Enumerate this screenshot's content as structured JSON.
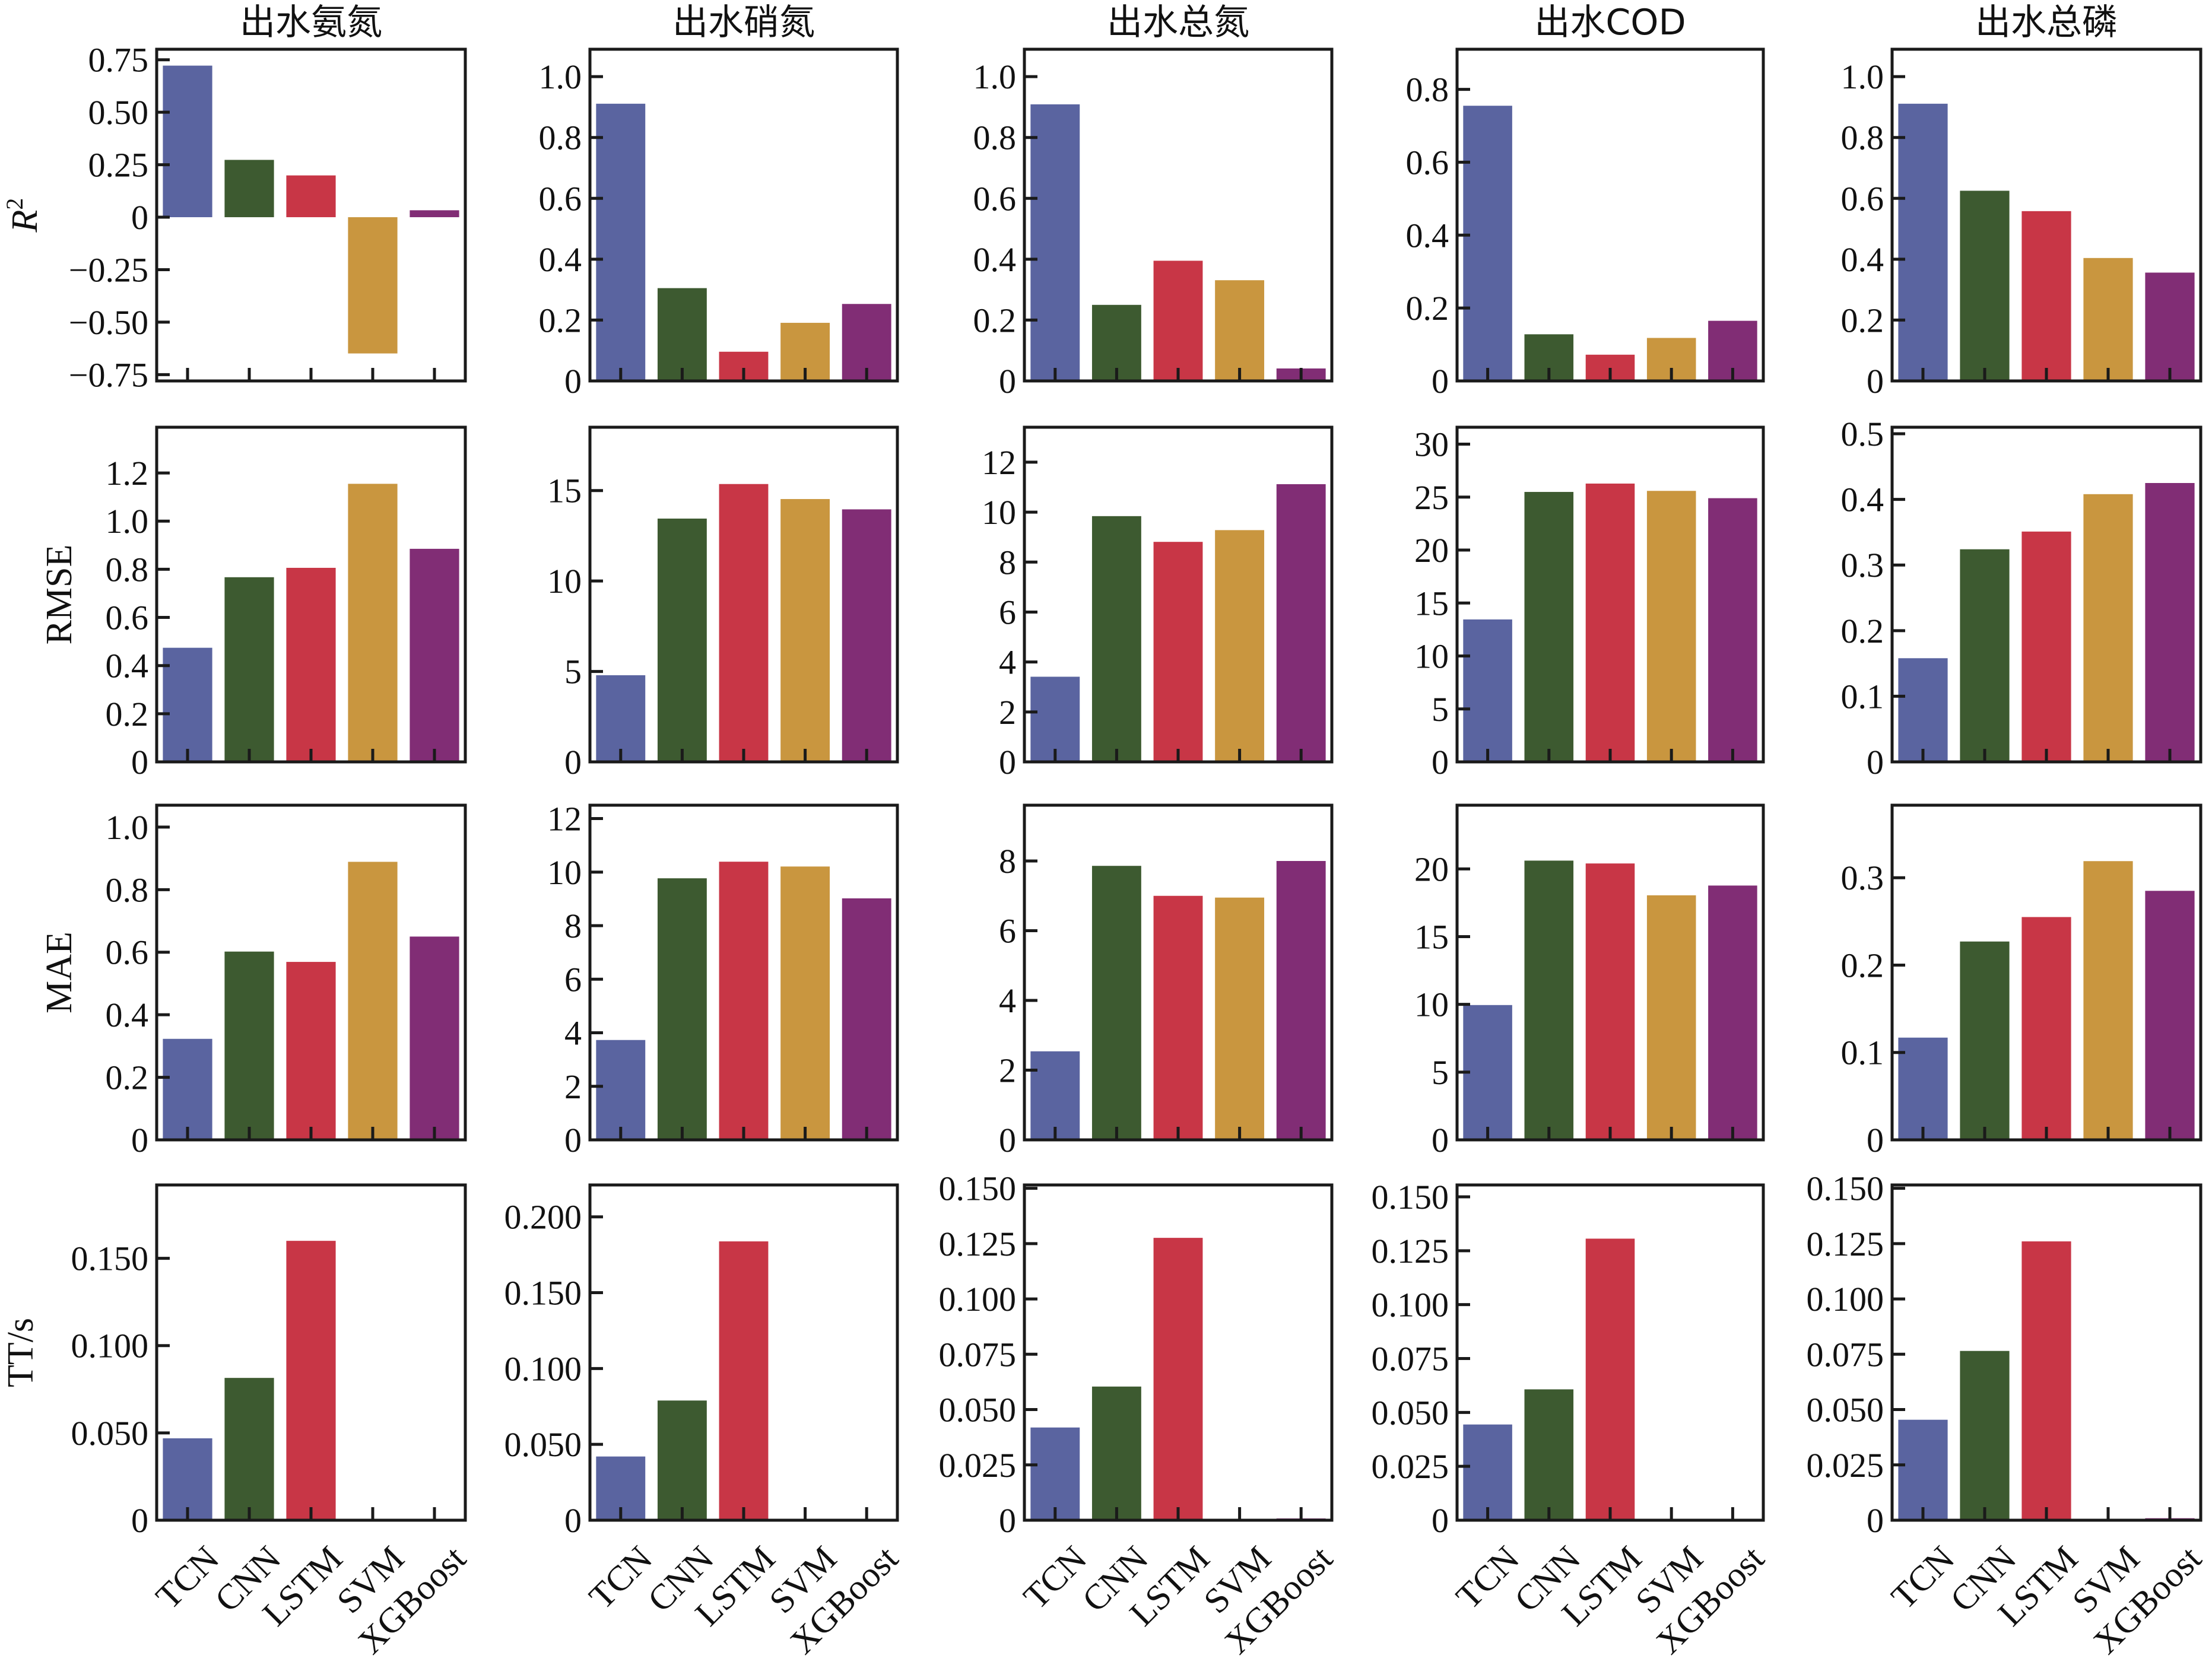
{
  "chart_data": {
    "type": "bar",
    "layout": "grid 4 rows x 5 columns",
    "categories": [
      "TCN",
      "CNN",
      "LSTM",
      "SVM",
      "XGBoost"
    ],
    "colors": [
      "#5a64a0",
      "#3d5a30",
      "#c83646",
      "#c9963f",
      "#812d75"
    ],
    "columns": [
      "出水氨氮",
      "出水硝氮",
      "出水总氮",
      "出水COD",
      "出水总磷"
    ],
    "rows": [
      {
        "metric": "R2",
        "ylabel": "R",
        "ylabel_sup": "2"
      },
      {
        "metric": "RMSE",
        "ylabel": "RMSE",
        "ylabel_sup": ""
      },
      {
        "metric": "MAE",
        "ylabel": "MAE",
        "ylabel_sup": ""
      },
      {
        "metric": "TT",
        "ylabel": "TT/s",
        "ylabel_sup": ""
      }
    ],
    "panels": [
      [
        {
          "ylim": [
            -0.78,
            0.8
          ],
          "yticks": [
            -0.75,
            -0.5,
            -0.25,
            0,
            0.25,
            0.5,
            0.75
          ],
          "ytick_labels": [
            "−0.75",
            "−0.50",
            "−0.25",
            "0",
            "0.25",
            "0.50",
            "0.75"
          ],
          "values": [
            0.722,
            0.273,
            0.199,
            -0.649,
            0.033
          ]
        },
        {
          "ylim": [
            0,
            1.09
          ],
          "yticks": [
            0,
            0.2,
            0.4,
            0.6,
            0.8,
            1.0
          ],
          "ytick_labels": [
            "0",
            "0.2",
            "0.4",
            "0.6",
            "0.8",
            "1.0"
          ],
          "values": [
            0.911,
            0.305,
            0.096,
            0.191,
            0.253
          ]
        },
        {
          "ylim": [
            0,
            1.09
          ],
          "yticks": [
            0,
            0.2,
            0.4,
            0.6,
            0.8,
            1.0
          ],
          "ytick_labels": [
            "0",
            "0.2",
            "0.4",
            "0.6",
            "0.8",
            "1.0"
          ],
          "values": [
            0.909,
            0.25,
            0.395,
            0.331,
            0.041
          ]
        },
        {
          "ylim": [
            0,
            0.91
          ],
          "yticks": [
            0,
            0.2,
            0.4,
            0.6,
            0.8
          ],
          "ytick_labels": [
            "0",
            "0.2",
            "0.4",
            "0.6",
            "0.8"
          ],
          "values": [
            0.755,
            0.128,
            0.072,
            0.118,
            0.165
          ]
        },
        {
          "ylim": [
            0,
            1.09
          ],
          "yticks": [
            0,
            0.2,
            0.4,
            0.6,
            0.8,
            1.0
          ],
          "ytick_labels": [
            "0",
            "0.2",
            "0.4",
            "0.6",
            "0.8",
            "1.0"
          ],
          "values": [
            0.911,
            0.625,
            0.558,
            0.404,
            0.356
          ]
        }
      ],
      [
        {
          "ylim": [
            0,
            1.39
          ],
          "yticks": [
            0,
            0.2,
            0.4,
            0.6,
            0.8,
            1.0,
            1.2
          ],
          "ytick_labels": [
            "0",
            "0.2",
            "0.4",
            "0.6",
            "0.8",
            "1.0",
            "1.2"
          ],
          "values": [
            0.474,
            0.767,
            0.806,
            1.155,
            0.885
          ]
        },
        {
          "ylim": [
            0,
            18.5
          ],
          "yticks": [
            0,
            5,
            10,
            15
          ],
          "ytick_labels": [
            "0",
            "5",
            "10",
            "15"
          ],
          "values": [
            4.79,
            13.45,
            15.36,
            14.53,
            13.96
          ]
        },
        {
          "ylim": [
            0,
            13.4
          ],
          "yticks": [
            0,
            2,
            4,
            6,
            8,
            10,
            12
          ],
          "ytick_labels": [
            "0",
            "2",
            "4",
            "6",
            "8",
            "10",
            "12"
          ],
          "values": [
            3.41,
            9.84,
            8.81,
            9.28,
            11.12
          ]
        },
        {
          "ylim": [
            0,
            31.6
          ],
          "yticks": [
            0,
            5,
            10,
            15,
            20,
            25,
            30
          ],
          "ytick_labels": [
            "0",
            "5",
            "10",
            "15",
            "20",
            "25",
            "30"
          ],
          "values": [
            13.45,
            25.49,
            26.28,
            25.59,
            24.9
          ]
        },
        {
          "ylim": [
            0,
            0.51
          ],
          "yticks": [
            0,
            0.1,
            0.2,
            0.3,
            0.4,
            0.5
          ],
          "ytick_labels": [
            "0",
            "0.1",
            "0.2",
            "0.3",
            "0.4",
            "0.5"
          ],
          "values": [
            0.158,
            0.324,
            0.351,
            0.408,
            0.425
          ]
        }
      ],
      [
        {
          "ylim": [
            0,
            1.07
          ],
          "yticks": [
            0,
            0.2,
            0.4,
            0.6,
            0.8,
            1.0
          ],
          "ytick_labels": [
            "0",
            "0.2",
            "0.4",
            "0.6",
            "0.8",
            "1.0"
          ],
          "values": [
            0.323,
            0.602,
            0.569,
            0.889,
            0.65
          ]
        },
        {
          "ylim": [
            0,
            12.5
          ],
          "yticks": [
            0,
            2,
            4,
            6,
            8,
            10,
            12
          ],
          "ytick_labels": [
            "0",
            "2",
            "4",
            "6",
            "8",
            "10",
            "12"
          ],
          "values": [
            3.73,
            9.77,
            10.39,
            10.21,
            9.02
          ]
        },
        {
          "ylim": [
            0,
            9.6
          ],
          "yticks": [
            0,
            2,
            4,
            6,
            8
          ],
          "ytick_labels": [
            "0",
            "2",
            "4",
            "6",
            "8"
          ],
          "values": [
            2.54,
            7.86,
            7.0,
            6.95,
            8.0
          ]
        },
        {
          "ylim": [
            0,
            24.7
          ],
          "yticks": [
            0,
            5,
            10,
            15,
            20
          ],
          "ytick_labels": [
            "0",
            "5",
            "10",
            "15",
            "20"
          ],
          "values": [
            9.95,
            20.61,
            20.4,
            18.05,
            18.77
          ]
        },
        {
          "ylim": [
            0,
            0.383
          ],
          "yticks": [
            0,
            0.1,
            0.2,
            0.3
          ],
          "ytick_labels": [
            "0",
            "0.1",
            "0.2",
            "0.3"
          ],
          "values": [
            0.117,
            0.227,
            0.255,
            0.319,
            0.285
          ]
        }
      ],
      [
        {
          "ylim": [
            0,
            0.192
          ],
          "yticks": [
            0,
            0.05,
            0.1,
            0.15
          ],
          "ytick_labels": [
            "0",
            "0.050",
            "0.100",
            "0.150"
          ],
          "values": [
            0.0469,
            0.0815,
            0.16,
            0.0002,
            0.0005
          ]
        },
        {
          "ylim": [
            0,
            0.221
          ],
          "yticks": [
            0,
            0.05,
            0.1,
            0.15,
            0.2
          ],
          "ytick_labels": [
            "0",
            "0.050",
            "0.100",
            "0.150",
            "0.200"
          ],
          "values": [
            0.042,
            0.0789,
            0.1838,
            0.0002,
            0.0005
          ]
        },
        {
          "ylim": [
            0,
            0.1515
          ],
          "yticks": [
            0,
            0.025,
            0.05,
            0.075,
            0.1,
            0.125,
            0.15
          ],
          "ytick_labels": [
            "0",
            "0.025",
            "0.050",
            "0.075",
            "0.100",
            "0.125",
            "0.150"
          ],
          "values": [
            0.0419,
            0.0604,
            0.1276,
            0.0001,
            0.0008
          ]
        },
        {
          "ylim": [
            0,
            0.1555
          ],
          "yticks": [
            0,
            0.025,
            0.05,
            0.075,
            0.1,
            0.125,
            0.15
          ],
          "ytick_labels": [
            "0",
            "0.025",
            "0.050",
            "0.075",
            "0.100",
            "0.125",
            "0.150"
          ],
          "values": [
            0.0444,
            0.0607,
            0.1306,
            0.0001,
            0.0006
          ]
        },
        {
          "ylim": [
            0,
            0.1515
          ],
          "yticks": [
            0,
            0.025,
            0.05,
            0.075,
            0.1,
            0.125,
            0.15
          ],
          "ytick_labels": [
            "0",
            "0.025",
            "0.050",
            "0.075",
            "0.100",
            "0.125",
            "0.150"
          ],
          "values": [
            0.0454,
            0.0765,
            0.126,
            0.0001,
            0.0009
          ]
        }
      ]
    ],
    "xlabel": "",
    "grid": false,
    "legend": "none"
  }
}
